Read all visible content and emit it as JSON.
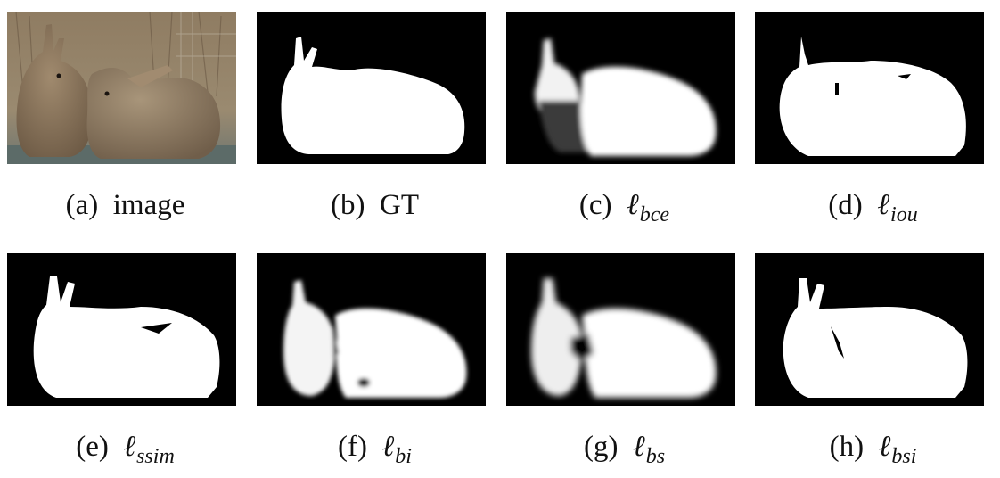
{
  "panels": [
    {
      "id": "a",
      "letter": "(a)",
      "name": "image",
      "sub": ""
    },
    {
      "id": "b",
      "letter": "(b)",
      "name": "GT",
      "sub": ""
    },
    {
      "id": "c",
      "letter": "(c)",
      "name": "",
      "sub": "bce"
    },
    {
      "id": "d",
      "letter": "(d)",
      "name": "",
      "sub": "iou"
    },
    {
      "id": "e",
      "letter": "(e)",
      "name": "",
      "sub": "ssim"
    },
    {
      "id": "f",
      "letter": "(f)",
      "name": "",
      "sub": "bi"
    },
    {
      "id": "g",
      "letter": "(g)",
      "name": "",
      "sub": "bs"
    },
    {
      "id": "h",
      "letter": "(h)",
      "name": "",
      "sub": "bsi"
    }
  ],
  "loss_symbol": "ℓ",
  "colors": {
    "mask_bg": "#000000",
    "mask_fg": "#ffffff",
    "rabbit_fur": "#8a7560",
    "ground": "#5c6b68"
  }
}
